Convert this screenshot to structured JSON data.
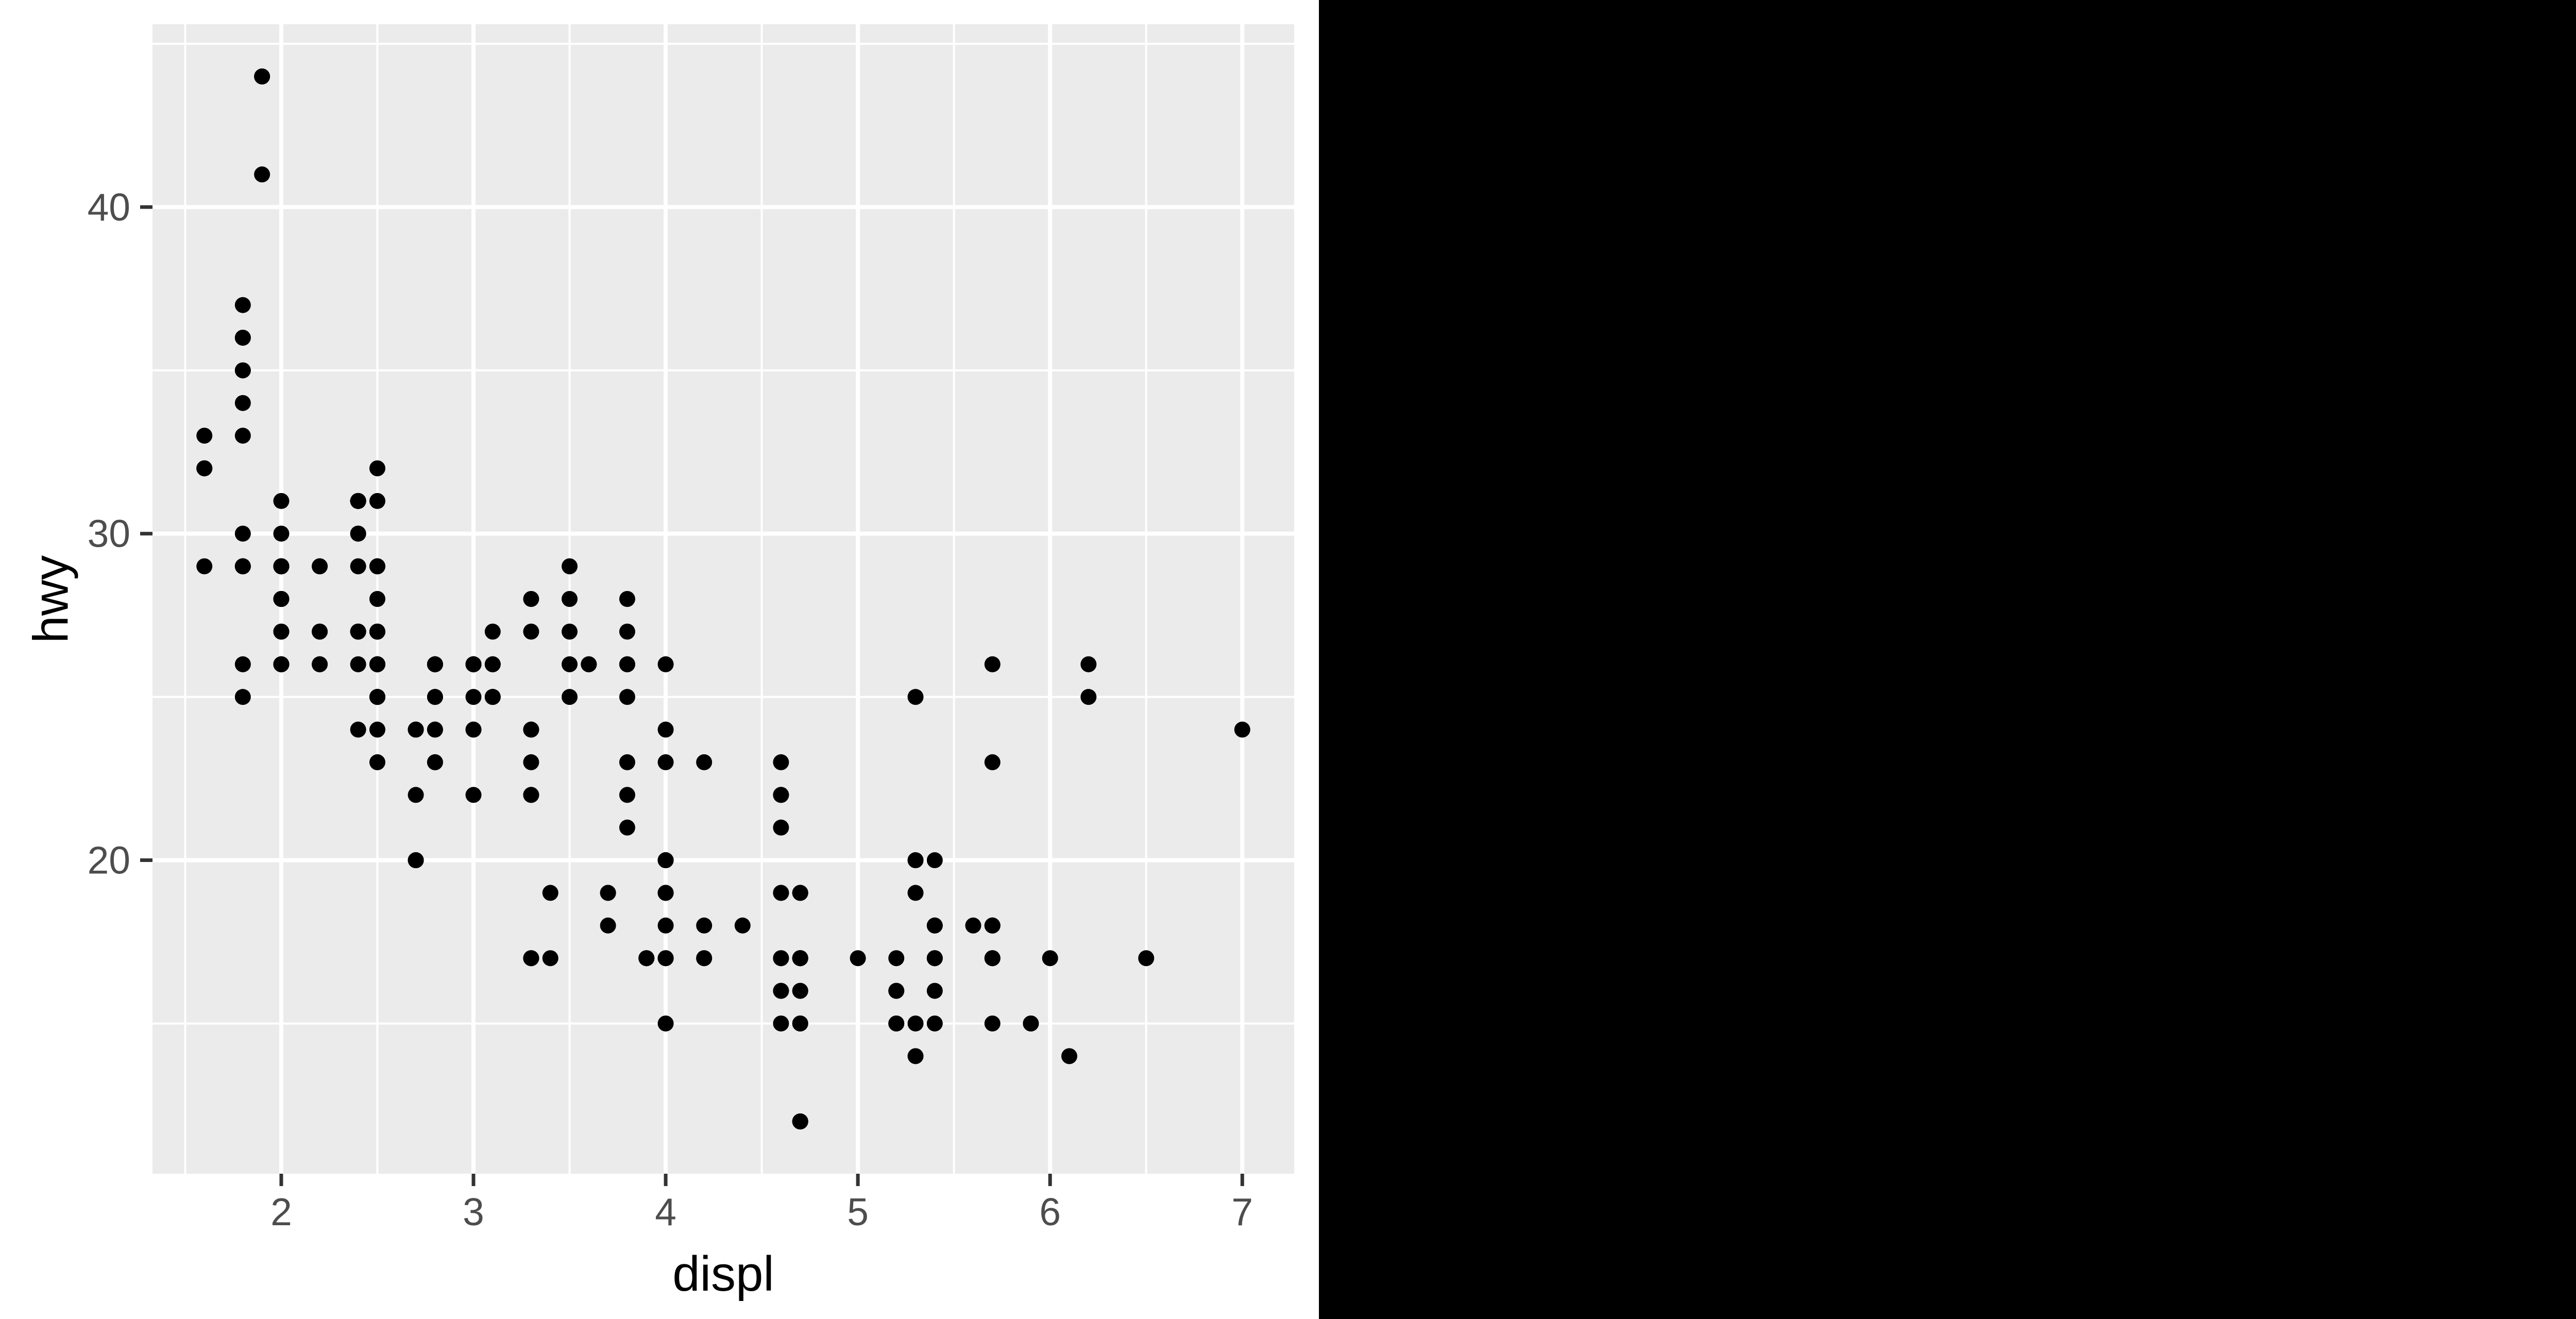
{
  "window": {
    "description": "R plot output on white canvas occupying left half of screen, solid black elsewhere"
  },
  "chart_data": {
    "type": "scatter",
    "title": "",
    "xlabel": "displ",
    "ylabel": "hwy",
    "x_ticks": [
      2,
      3,
      4,
      5,
      6,
      7
    ],
    "y_ticks": [
      20,
      30,
      40
    ],
    "x_minor_ticks": [
      1.5,
      2.5,
      3.5,
      4.5,
      5.5,
      6.5,
      7.5
    ],
    "y_minor_ticks": [
      15,
      25,
      35,
      45
    ],
    "xlim": [
      1.33,
      7.27
    ],
    "ylim": [
      10.4,
      45.6
    ],
    "grid": "white major and minor gridlines on gray panel",
    "legend": "none",
    "point_style": "solid black circles",
    "colors": {
      "panel_background": "#EBEBEB",
      "gridline": "#FFFFFF",
      "tick_mark": "#333333",
      "tick_label": "#4D4D4D",
      "axis_title": "#000000",
      "point": "#000000",
      "surface_background": "#FFFFFF",
      "screen_background": "#000000"
    },
    "points": [
      [
        1.8,
        29
      ],
      [
        1.8,
        29
      ],
      [
        2.0,
        31
      ],
      [
        2.0,
        30
      ],
      [
        2.8,
        26
      ],
      [
        2.8,
        26
      ],
      [
        3.1,
        27
      ],
      [
        1.8,
        26
      ],
      [
        1.8,
        25
      ],
      [
        2.0,
        28
      ],
      [
        2.0,
        27
      ],
      [
        2.8,
        25
      ],
      [
        2.8,
        25
      ],
      [
        3.1,
        25
      ],
      [
        3.1,
        25
      ],
      [
        2.8,
        24
      ],
      [
        3.1,
        25
      ],
      [
        4.2,
        23
      ],
      [
        5.3,
        20
      ],
      [
        5.3,
        15
      ],
      [
        5.3,
        20
      ],
      [
        5.7,
        17
      ],
      [
        6.0,
        17
      ],
      [
        5.7,
        26
      ],
      [
        5.7,
        23
      ],
      [
        6.2,
        26
      ],
      [
        6.2,
        25
      ],
      [
        7.0,
        24
      ],
      [
        5.3,
        19
      ],
      [
        5.3,
        14
      ],
      [
        5.7,
        15
      ],
      [
        6.5,
        17
      ],
      [
        2.4,
        27
      ],
      [
        2.4,
        30
      ],
      [
        3.1,
        26
      ],
      [
        3.5,
        29
      ],
      [
        3.6,
        26
      ],
      [
        2.4,
        24
      ],
      [
        3.0,
        24
      ],
      [
        3.3,
        22
      ],
      [
        3.3,
        22
      ],
      [
        3.3,
        24
      ],
      [
        3.3,
        24
      ],
      [
        3.3,
        17
      ],
      [
        3.8,
        22
      ],
      [
        3.8,
        21
      ],
      [
        3.8,
        23
      ],
      [
        4.0,
        23
      ],
      [
        3.7,
        19
      ],
      [
        3.7,
        18
      ],
      [
        3.9,
        17
      ],
      [
        3.9,
        17
      ],
      [
        4.7,
        19
      ],
      [
        4.7,
        19
      ],
      [
        4.7,
        12
      ],
      [
        5.2,
        17
      ],
      [
        5.2,
        15
      ],
      [
        3.9,
        17
      ],
      [
        4.7,
        17
      ],
      [
        4.7,
        12
      ],
      [
        4.7,
        17
      ],
      [
        5.2,
        16
      ],
      [
        5.7,
        18
      ],
      [
        5.9,
        15
      ],
      [
        4.7,
        16
      ],
      [
        4.7,
        12
      ],
      [
        4.7,
        17
      ],
      [
        4.7,
        17
      ],
      [
        4.7,
        16
      ],
      [
        4.7,
        12
      ],
      [
        5.2,
        15
      ],
      [
        5.2,
        16
      ],
      [
        5.7,
        17
      ],
      [
        5.9,
        15
      ],
      [
        4.6,
        17
      ],
      [
        5.4,
        17
      ],
      [
        5.4,
        18
      ],
      [
        4.0,
        17
      ],
      [
        4.0,
        19
      ],
      [
        4.0,
        17
      ],
      [
        4.0,
        18
      ],
      [
        4.0,
        19
      ],
      [
        4.6,
        19
      ],
      [
        4.2,
        17
      ],
      [
        4.2,
        17
      ],
      [
        4.6,
        16
      ],
      [
        4.6,
        16
      ],
      [
        4.6,
        17
      ],
      [
        5.4,
        15
      ],
      [
        5.4,
        17
      ],
      [
        3.8,
        26
      ],
      [
        3.8,
        25
      ],
      [
        4.0,
        26
      ],
      [
        4.0,
        24
      ],
      [
        4.6,
        21
      ],
      [
        4.6,
        22
      ],
      [
        4.6,
        23
      ],
      [
        4.6,
        22
      ],
      [
        5.4,
        20
      ],
      [
        1.6,
        33
      ],
      [
        1.6,
        32
      ],
      [
        1.6,
        32
      ],
      [
        1.6,
        29
      ],
      [
        1.6,
        32
      ],
      [
        1.8,
        34
      ],
      [
        1.8,
        36
      ],
      [
        1.8,
        36
      ],
      [
        2.0,
        29
      ],
      [
        2.4,
        26
      ],
      [
        2.4,
        27
      ],
      [
        2.4,
        30
      ],
      [
        2.4,
        31
      ],
      [
        2.5,
        26
      ],
      [
        2.5,
        26
      ],
      [
        3.3,
        28
      ],
      [
        2.0,
        26
      ],
      [
        2.0,
        29
      ],
      [
        2.0,
        28
      ],
      [
        2.0,
        27
      ],
      [
        2.7,
        24
      ],
      [
        2.7,
        24
      ],
      [
        2.7,
        24
      ],
      [
        3.0,
        22
      ],
      [
        3.7,
        19
      ],
      [
        4.0,
        20
      ],
      [
        4.7,
        17
      ],
      [
        4.7,
        12
      ],
      [
        4.7,
        19
      ],
      [
        5.7,
        18
      ],
      [
        6.1,
        14
      ],
      [
        4.0,
        15
      ],
      [
        4.2,
        18
      ],
      [
        4.4,
        18
      ],
      [
        4.6,
        15
      ],
      [
        5.4,
        17
      ],
      [
        5.4,
        16
      ],
      [
        5.4,
        18
      ],
      [
        4.0,
        17
      ],
      [
        4.0,
        19
      ],
      [
        4.6,
        19
      ],
      [
        5.0,
        17
      ],
      [
        2.4,
        29
      ],
      [
        2.4,
        27
      ],
      [
        2.5,
        31
      ],
      [
        2.5,
        32
      ],
      [
        3.5,
        27
      ],
      [
        3.5,
        26
      ],
      [
        3.0,
        26
      ],
      [
        3.0,
        25
      ],
      [
        3.5,
        25
      ],
      [
        3.3,
        17
      ],
      [
        3.3,
        17
      ],
      [
        4.0,
        20
      ],
      [
        5.6,
        18
      ],
      [
        3.1,
        26
      ],
      [
        3.8,
        26
      ],
      [
        3.8,
        27
      ],
      [
        3.8,
        28
      ],
      [
        5.3,
        25
      ],
      [
        2.5,
        25
      ],
      [
        2.5,
        24
      ],
      [
        2.5,
        27
      ],
      [
        2.5,
        25
      ],
      [
        2.5,
        26
      ],
      [
        2.5,
        23
      ],
      [
        2.2,
        26
      ],
      [
        2.2,
        26
      ],
      [
        2.5,
        26
      ],
      [
        2.5,
        26
      ],
      [
        2.5,
        25
      ],
      [
        2.5,
        27
      ],
      [
        2.5,
        25
      ],
      [
        2.5,
        27
      ],
      [
        2.7,
        20
      ],
      [
        2.7,
        20
      ],
      [
        3.4,
        19
      ],
      [
        3.4,
        17
      ],
      [
        4.0,
        20
      ],
      [
        4.7,
        17
      ],
      [
        2.2,
        29
      ],
      [
        2.2,
        27
      ],
      [
        2.4,
        31
      ],
      [
        2.4,
        31
      ],
      [
        3.0,
        26
      ],
      [
        3.0,
        26
      ],
      [
        3.5,
        28
      ],
      [
        2.2,
        27
      ],
      [
        2.2,
        29
      ],
      [
        2.4,
        31
      ],
      [
        2.4,
        31
      ],
      [
        3.0,
        26
      ],
      [
        3.0,
        26
      ],
      [
        3.3,
        27
      ],
      [
        1.8,
        30
      ],
      [
        1.8,
        33
      ],
      [
        1.8,
        35
      ],
      [
        1.8,
        37
      ],
      [
        1.8,
        35
      ],
      [
        4.7,
        15
      ],
      [
        5.7,
        18
      ],
      [
        4.7,
        15
      ],
      [
        4.7,
        17
      ],
      [
        5.7,
        17
      ],
      [
        3.0,
        24
      ],
      [
        3.3,
        23
      ],
      [
        2.7,
        22
      ],
      [
        2.7,
        20
      ],
      [
        2.0,
        29
      ],
      [
        2.0,
        26
      ],
      [
        2.0,
        29
      ],
      [
        2.0,
        29
      ],
      [
        2.8,
        24
      ],
      [
        1.9,
        44
      ],
      [
        2.0,
        29
      ],
      [
        2.0,
        26
      ],
      [
        2.0,
        29
      ],
      [
        2.0,
        29
      ],
      [
        2.5,
        29
      ],
      [
        2.5,
        29
      ],
      [
        2.8,
        23
      ],
      [
        2.8,
        23
      ],
      [
        1.9,
        44
      ],
      [
        1.9,
        41
      ],
      [
        2.0,
        29
      ],
      [
        2.0,
        26
      ],
      [
        2.5,
        28
      ],
      [
        2.5,
        29
      ],
      [
        1.8,
        29
      ],
      [
        1.8,
        29
      ],
      [
        2.0,
        28
      ],
      [
        2.0,
        29
      ],
      [
        2.8,
        26
      ],
      [
        2.8,
        26
      ],
      [
        3.6,
        26
      ]
    ]
  }
}
